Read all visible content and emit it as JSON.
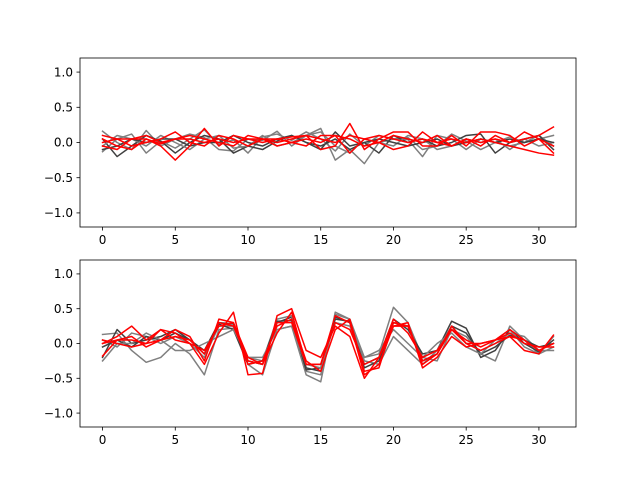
{
  "chart_data": [
    {
      "type": "line",
      "xlim": [
        -1.55,
        32.55
      ],
      "ylim": [
        -1.2,
        1.2
      ],
      "xticks": [
        0,
        5,
        10,
        15,
        20,
        25,
        30
      ],
      "yticks": [
        -1.0,
        -0.5,
        0.0,
        0.5,
        1.0
      ],
      "xtick_labels": [
        "0",
        "5",
        "10",
        "15",
        "20",
        "25",
        "30"
      ],
      "ytick_labels": [
        "−1.0",
        "−0.5",
        "0.0",
        "0.5",
        "1.0"
      ],
      "grid": false,
      "x": [
        0,
        1,
        2,
        3,
        4,
        5,
        6,
        7,
        8,
        9,
        10,
        11,
        12,
        13,
        14,
        15,
        16,
        17,
        18,
        19,
        20,
        21,
        22,
        23,
        24,
        25,
        26,
        27,
        28,
        29,
        30,
        31
      ],
      "series": [
        {
          "color": "#7f7f7f",
          "values": [
            0.16,
            0.0,
            -0.1,
            0.17,
            -0.05,
            0.05,
            0.12,
            0.07,
            -0.1,
            -0.12,
            0.05,
            0.03,
            0.16,
            -0.05,
            0.1,
            0.2,
            -0.25,
            -0.1,
            -0.3,
            0.0,
            0.05,
            0.04,
            -0.2,
            0.1,
            0.05,
            -0.1,
            0.05,
            0.0,
            -0.05,
            0.0,
            0.1,
            -0.05
          ]
        },
        {
          "color": "#7f7f7f",
          "values": [
            -0.13,
            0.05,
            0.12,
            -0.15,
            0.02,
            -0.08,
            0.05,
            0.18,
            -0.03,
            0.04,
            -0.15,
            0.08,
            0.12,
            0.03,
            0.15,
            0.05,
            -0.12,
            0.12,
            -0.05,
            0.1,
            0.05,
            0.07,
            -0.1,
            -0.05,
            0.12,
            0.02,
            -0.1,
            0.0,
            0.08,
            0.0,
            0.05,
            0.1
          ]
        },
        {
          "color": "#404040",
          "values": [
            0.05,
            -0.2,
            -0.05,
            0.1,
            0.02,
            -0.15,
            0.0,
            0.1,
            0.05,
            -0.15,
            -0.05,
            -0.1,
            0.02,
            0.1,
            0.0,
            -0.1,
            0.15,
            -0.05,
            0.0,
            -0.15,
            0.1,
            0.0,
            0.05,
            -0.05,
            0.0,
            0.1,
            0.12,
            -0.15,
            0.0,
            0.05,
            0.1,
            -0.1
          ]
        },
        {
          "color": "#7f7f7f",
          "values": [
            -0.05,
            0.1,
            0.05,
            -0.05,
            0.1,
            0.0,
            -0.1,
            0.05,
            0.1,
            -0.08,
            -0.05,
            0.1,
            -0.05,
            0.0,
            0.1,
            0.15,
            -0.05,
            -0.15,
            0.05,
            0.0,
            -0.05,
            0.1,
            0.05,
            -0.1,
            -0.05,
            0.05,
            0.0,
            0.05,
            -0.1,
            0.05,
            -0.05,
            0.0
          ]
        },
        {
          "color": "#404040",
          "values": [
            -0.1,
            -0.05,
            0.05,
            0.0,
            0.05,
            0.05,
            -0.05,
            0.0,
            0.0,
            0.1,
            0.0,
            -0.05,
            0.05,
            0.1,
            0.0,
            -0.05,
            0.05,
            -0.1,
            0.0,
            0.05,
            0.0,
            -0.05,
            0.0,
            0.05,
            -0.05,
            0.0,
            0.05,
            0.0,
            0.05,
            0.0,
            0.05,
            0.0
          ]
        },
        {
          "color": "#ff0000",
          "values": [
            -0.05,
            -0.1,
            0.05,
            0.05,
            -0.05,
            -0.25,
            -0.05,
            0.2,
            -0.05,
            0.1,
            0.05,
            0.0,
            0.05,
            0.08,
            0.1,
            -0.1,
            -0.05,
            0.27,
            -0.1,
            0.05,
            0.15,
            0.15,
            -0.05,
            -0.05,
            0.1,
            -0.05,
            0.15,
            0.15,
            0.1,
            -0.05,
            0.05,
            -0.15
          ]
        },
        {
          "color": "#ff0000",
          "values": [
            0.1,
            0.05,
            -0.05,
            0.0,
            0.05,
            0.15,
            0.0,
            -0.05,
            0.1,
            0.05,
            -0.05,
            0.05,
            0.05,
            0.0,
            -0.05,
            0.1,
            0.1,
            -0.15,
            0.05,
            0.0,
            -0.1,
            -0.05,
            0.15,
            0.0,
            -0.05,
            0.05,
            -0.05,
            0.1,
            0.0,
            0.15,
            0.05,
            -0.05
          ]
        },
        {
          "color": "#ff0000",
          "values": [
            0.0,
            0.05,
            0.05,
            0.1,
            0.0,
            0.05,
            0.05,
            0.0,
            0.05,
            0.0,
            0.05,
            0.05,
            0.0,
            0.05,
            0.1,
            0.05,
            0.0,
            0.1,
            0.05,
            0.1,
            0.05,
            0.0,
            0.05,
            0.0,
            0.05,
            0.0,
            0.05,
            0.0,
            -0.05,
            -0.1,
            -0.15,
            -0.18
          ]
        },
        {
          "color": "#ff0000",
          "values": [
            0.05,
            -0.05,
            -0.1,
            0.05,
            -0.02,
            0.05,
            0.1,
            0.05,
            0.0,
            -0.05,
            0.1,
            0.05,
            -0.05,
            0.0,
            0.05,
            0.0,
            0.1,
            0.05,
            -0.05,
            0.0,
            0.1,
            0.05,
            0.0,
            0.1,
            -0.05,
            0.05,
            0.0,
            0.05,
            0.0,
            0.05,
            0.1,
            0.22
          ]
        }
      ]
    },
    {
      "type": "line",
      "xlim": [
        -1.55,
        32.55
      ],
      "ylim": [
        -1.2,
        1.2
      ],
      "xticks": [
        0,
        5,
        10,
        15,
        20,
        25,
        30
      ],
      "yticks": [
        -1.0,
        -0.5,
        0.0,
        0.5,
        1.0
      ],
      "xtick_labels": [
        "0",
        "5",
        "10",
        "15",
        "20",
        "25",
        "30"
      ],
      "ytick_labels": [
        "−1.0",
        "−0.5",
        "0.0",
        "0.5",
        "1.0"
      ],
      "grid": false,
      "x": [
        0,
        1,
        2,
        3,
        4,
        5,
        6,
        7,
        8,
        9,
        10,
        11,
        12,
        13,
        14,
        15,
        16,
        17,
        18,
        19,
        20,
        21,
        22,
        23,
        24,
        25,
        26,
        27,
        28,
        29,
        30,
        31
      ],
      "series": [
        {
          "color": "#7f7f7f",
          "values": [
            0.13,
            0.15,
            -0.1,
            -0.27,
            -0.2,
            0.0,
            -0.15,
            -0.45,
            0.2,
            0.22,
            -0.3,
            -0.45,
            0.2,
            0.25,
            -0.45,
            -0.55,
            0.45,
            0.35,
            -0.2,
            -0.15,
            0.52,
            0.3,
            -0.2,
            -0.25,
            0.2,
            0.1,
            -0.15,
            -0.25,
            0.25,
            0.05,
            -0.15,
            0.1
          ]
        },
        {
          "color": "#404040",
          "values": [
            -0.2,
            0.2,
            0.0,
            0.05,
            0.1,
            0.2,
            0.05,
            -0.1,
            0.3,
            0.28,
            -0.25,
            -0.3,
            0.3,
            0.38,
            -0.35,
            -0.4,
            0.38,
            0.3,
            -0.3,
            -0.2,
            0.35,
            0.2,
            -0.15,
            -0.1,
            0.32,
            0.22,
            -0.2,
            -0.1,
            0.2,
            0.0,
            -0.12,
            0.05
          ]
        },
        {
          "color": "#7f7f7f",
          "values": [
            0.05,
            -0.05,
            0.15,
            0.1,
            0.0,
            0.1,
            0.0,
            -0.2,
            0.25,
            0.25,
            -0.2,
            -0.25,
            0.35,
            0.4,
            -0.4,
            -0.45,
            0.42,
            0.35,
            -0.25,
            -0.3,
            0.1,
            -0.1,
            -0.3,
            -0.1,
            0.25,
            0.0,
            -0.1,
            0.0,
            0.15,
            0.1,
            -0.1,
            -0.1
          ]
        },
        {
          "color": "#404040",
          "values": [
            -0.05,
            0.05,
            -0.05,
            0.1,
            0.05,
            0.15,
            0.05,
            -0.15,
            0.28,
            0.2,
            -0.3,
            -0.25,
            0.32,
            0.33,
            -0.38,
            -0.35,
            0.35,
            0.32,
            -0.35,
            -0.25,
            0.3,
            0.25,
            -0.25,
            -0.15,
            0.25,
            0.15,
            -0.15,
            -0.05,
            0.12,
            0.05,
            -0.05,
            0.0
          ]
        },
        {
          "color": "#7f7f7f",
          "values": [
            -0.25,
            0.0,
            0.0,
            0.15,
            0.05,
            -0.1,
            -0.1,
            0.0,
            0.1,
            0.2,
            -0.2,
            -0.2,
            0.2,
            0.25,
            -0.3,
            -0.35,
            0.3,
            0.25,
            -0.2,
            -0.1,
            0.2,
            0.0,
            -0.2,
            0.0,
            0.15,
            -0.05,
            -0.15,
            0.05,
            0.2,
            -0.05,
            -0.15,
            -0.05
          ]
        },
        {
          "color": "#ff0000",
          "values": [
            0.0,
            0.1,
            0.25,
            0.05,
            0.2,
            0.15,
            0.0,
            -0.3,
            0.15,
            0.45,
            -0.45,
            -0.43,
            0.4,
            0.5,
            -0.1,
            -0.2,
            0.25,
            0.1,
            -0.5,
            -0.2,
            0.25,
            0.3,
            -0.35,
            -0.2,
            0.1,
            -0.05,
            0.0,
            0.05,
            0.1,
            -0.1,
            -0.15,
            0.12
          ]
        },
        {
          "color": "#ff0000",
          "values": [
            0.05,
            0.0,
            -0.05,
            0.0,
            0.05,
            0.2,
            0.1,
            -0.25,
            0.35,
            0.3,
            -0.2,
            -0.3,
            0.15,
            0.45,
            -0.3,
            -0.3,
            0.4,
            0.3,
            -0.45,
            -0.3,
            0.25,
            0.25,
            -0.25,
            -0.15,
            0.2,
            0.0,
            -0.1,
            0.0,
            0.1,
            0.05,
            -0.1,
            0.0
          ]
        },
        {
          "color": "#ff0000",
          "values": [
            -0.18,
            0.05,
            0.05,
            0.0,
            0.2,
            0.05,
            0.0,
            -0.1,
            0.25,
            0.3,
            -0.3,
            -0.25,
            0.25,
            0.35,
            -0.25,
            -0.4,
            0.2,
            0.35,
            -0.4,
            -0.35,
            0.3,
            0.25,
            -0.3,
            -0.15,
            0.25,
            0.0,
            0.0,
            0.05,
            0.15,
            0.0,
            -0.05,
            -0.05
          ]
        },
        {
          "color": "#ff0000",
          "values": [
            0.0,
            0.05,
            0.1,
            -0.05,
            0.05,
            0.1,
            0.05,
            -0.15,
            0.3,
            0.25,
            -0.25,
            -0.3,
            0.3,
            0.3,
            -0.3,
            -0.3,
            0.3,
            0.2,
            -0.3,
            -0.2,
            0.35,
            0.15,
            -0.2,
            -0.1,
            0.2,
            0.05,
            -0.05,
            0.05,
            0.2,
            0.05,
            -0.1,
            0.0
          ]
        }
      ]
    }
  ]
}
